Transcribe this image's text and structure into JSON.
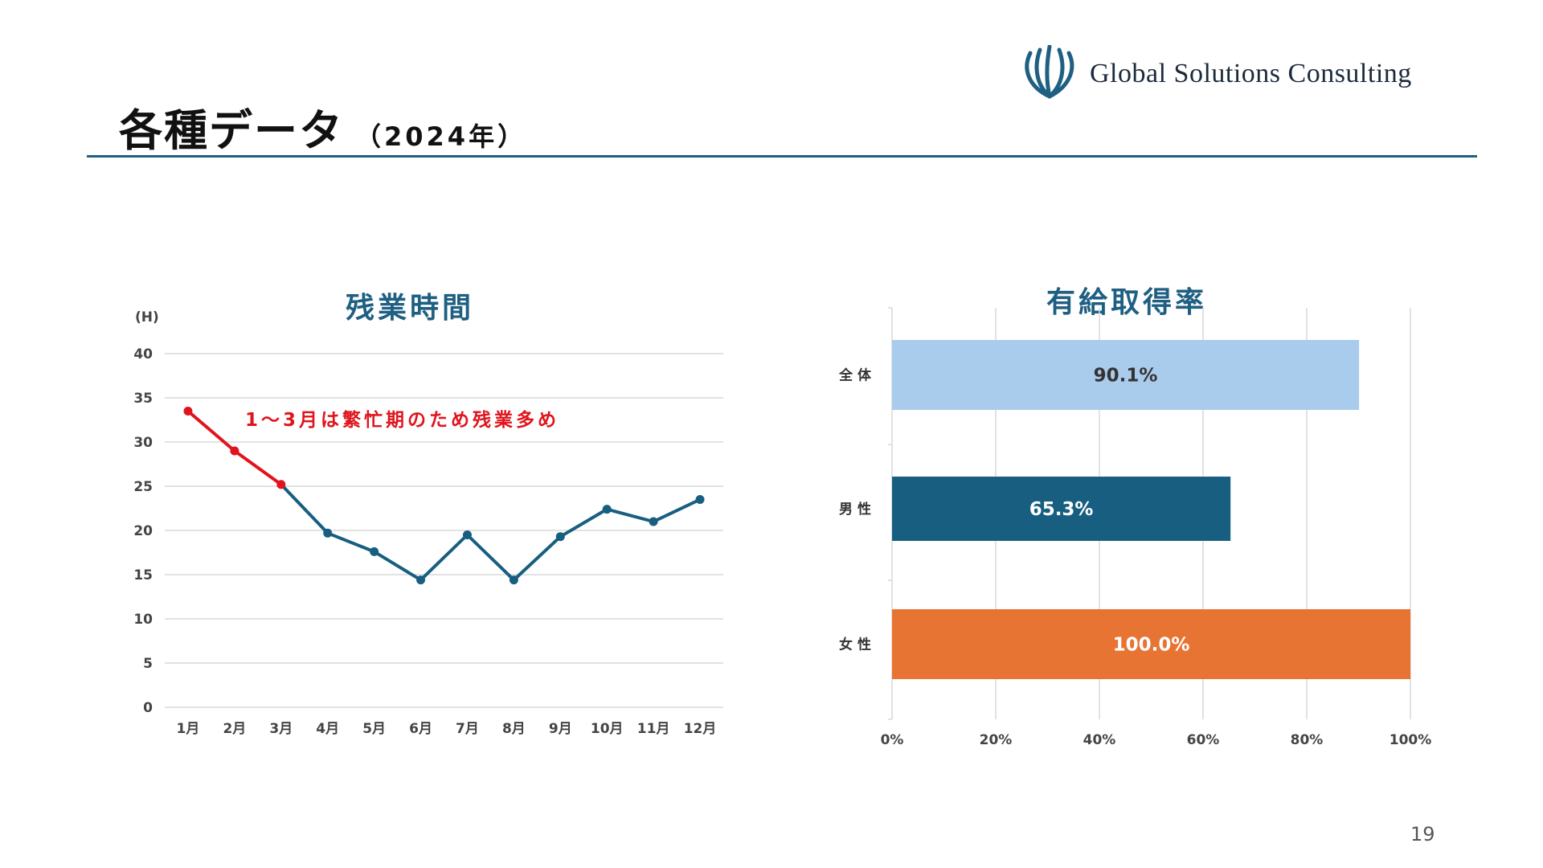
{
  "slide": {
    "title": "各種データ",
    "year": "（2024年）",
    "page_number": "19"
  },
  "logo": {
    "text": "Global Solutions Consulting",
    "icon": "globe-logo-icon",
    "color": "#1e5f82"
  },
  "colors": {
    "accent": "#1e5f82",
    "line": "#175e80",
    "highlight": "#e0141c",
    "bar_all": "#a9cbec",
    "bar_male": "#175e80",
    "bar_female": "#e87434",
    "grid": "#d9d9d9"
  },
  "chart_data": [
    {
      "type": "line",
      "title": "残業時間",
      "ylabel": "(H)",
      "categories": [
        "1月",
        "2月",
        "3月",
        "4月",
        "5月",
        "6月",
        "7月",
        "8月",
        "9月",
        "10月",
        "11月",
        "12月"
      ],
      "values": [
        33.5,
        29,
        25.2,
        19.7,
        17.6,
        14.4,
        19.5,
        14.4,
        19.3,
        22.4,
        21,
        23.5
      ],
      "highlight_range": [
        0,
        2
      ],
      "annotation": "1～3月は繁忙期のため残業多め",
      "ylim": [
        0,
        40
      ],
      "yticks": [
        0,
        5,
        10,
        15,
        20,
        25,
        30,
        35,
        40
      ],
      "grid": true
    },
    {
      "type": "bar",
      "orientation": "horizontal",
      "title": "有給取得率",
      "categories": [
        "全体",
        "男性",
        "女性"
      ],
      "values": [
        90.1,
        65.3,
        100.0
      ],
      "labels": [
        "90.1%",
        "65.3%",
        "100.0%"
      ],
      "xlim": [
        0,
        100
      ],
      "xticks": [
        "0%",
        "20%",
        "40%",
        "60%",
        "80%",
        "100%"
      ],
      "grid": true
    }
  ]
}
